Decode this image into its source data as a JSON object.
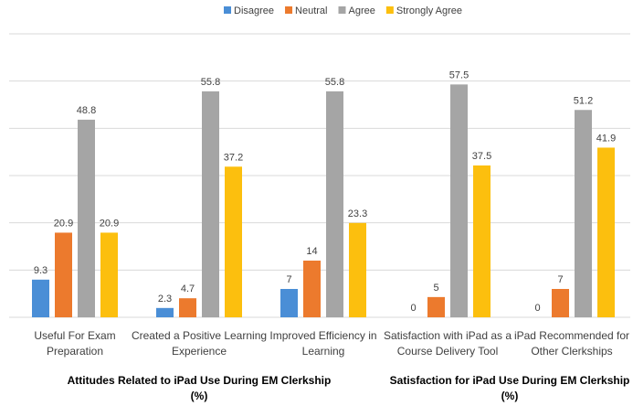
{
  "chart_data": {
    "type": "bar",
    "categories": [
      [
        "Useful For Exam",
        "Preparation"
      ],
      [
        "Created a Positive Learning",
        "Experience"
      ],
      [
        "Improved Efficiency in",
        "Learning"
      ],
      [
        "Satisfaction with iPad as a",
        "Course Delivery Tool"
      ],
      [
        "iPad Recommended for",
        "Other Clerkships"
      ]
    ],
    "series": [
      {
        "name": "Disagree",
        "color": "#4a8ed6",
        "values": [
          9.3,
          2.3,
          7,
          0,
          0
        ]
      },
      {
        "name": "Neutral",
        "color": "#ec7a2d",
        "values": [
          20.9,
          4.7,
          14,
          5,
          7
        ]
      },
      {
        "name": "Agree",
        "color": "#a5a5a5",
        "values": [
          48.8,
          55.8,
          55.8,
          57.5,
          51.2
        ]
      },
      {
        "name": "Strongly Agree",
        "color": "#fcbf0e",
        "values": [
          20.9,
          37.2,
          23.3,
          37.5,
          41.9
        ]
      }
    ],
    "ylim": [
      0,
      70
    ],
    "grid": true,
    "legend": "top-center",
    "group_labels": [
      {
        "lines": [
          "Attitudes Related to iPad Use During EM Clerkship",
          "(%)"
        ],
        "categories": [
          0,
          2
        ]
      },
      {
        "lines": [
          "Satisfaction for iPad Use During EM Clerkship",
          "(%)"
        ],
        "categories": [
          3,
          4
        ]
      }
    ]
  }
}
